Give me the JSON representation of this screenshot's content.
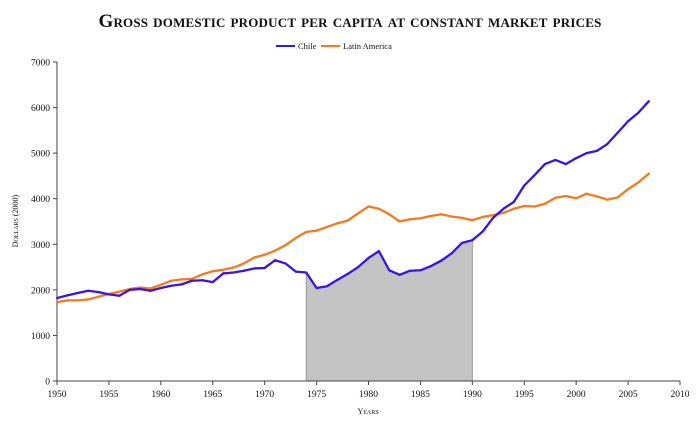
{
  "chart_data": {
    "type": "line",
    "title": "Gross domestic product per capita at constant market prices",
    "xlabel": "Years",
    "ylabel": "Dollars (2000)",
    "xlim": [
      1950,
      2010
    ],
    "ylim": [
      0,
      7000
    ],
    "xticks": [
      1950,
      1955,
      1960,
      1965,
      1970,
      1975,
      1980,
      1985,
      1990,
      1995,
      2000,
      2005,
      2010
    ],
    "yticks": [
      0,
      1000,
      2000,
      3000,
      4000,
      5000,
      6000,
      7000
    ],
    "grid": false,
    "legend": "top-center",
    "x": [
      1950,
      1951,
      1952,
      1953,
      1954,
      1955,
      1956,
      1957,
      1958,
      1959,
      1960,
      1961,
      1962,
      1963,
      1964,
      1965,
      1966,
      1967,
      1968,
      1969,
      1970,
      1971,
      1972,
      1973,
      1974,
      1975,
      1976,
      1977,
      1978,
      1979,
      1980,
      1981,
      1982,
      1983,
      1984,
      1985,
      1986,
      1987,
      1988,
      1989,
      1990,
      1991,
      1992,
      1993,
      1994,
      1995,
      1996,
      1997,
      1998,
      1999,
      2000,
      2001,
      2002,
      2003,
      2004,
      2005,
      2006,
      2007
    ],
    "series": [
      {
        "name": "Chile",
        "color": "#3a13e0",
        "values": [
          1820,
          1880,
          1930,
          1980,
          1950,
          1900,
          1870,
          2000,
          2020,
          1980,
          2040,
          2090,
          2120,
          2200,
          2210,
          2170,
          2360,
          2380,
          2420,
          2470,
          2480,
          2650,
          2580,
          2400,
          2380,
          2040,
          2080,
          2220,
          2350,
          2500,
          2700,
          2850,
          2430,
          2330,
          2420,
          2430,
          2520,
          2640,
          2800,
          3030,
          3090,
          3280,
          3580,
          3780,
          3930,
          4290,
          4520,
          4760,
          4850,
          4760,
          4890,
          5000,
          5050,
          5200,
          5450,
          5700,
          5890,
          6140
        ]
      },
      {
        "name": "Latin America",
        "color": "#f57a1e",
        "values": [
          1730,
          1770,
          1770,
          1790,
          1850,
          1910,
          1960,
          2020,
          2050,
          2030,
          2110,
          2200,
          2230,
          2240,
          2340,
          2410,
          2440,
          2490,
          2580,
          2710,
          2770,
          2860,
          2980,
          3140,
          3270,
          3300,
          3380,
          3460,
          3520,
          3680,
          3830,
          3780,
          3660,
          3500,
          3550,
          3570,
          3620,
          3660,
          3610,
          3580,
          3530,
          3600,
          3640,
          3690,
          3780,
          3840,
          3830,
          3890,
          4020,
          4060,
          4010,
          4110,
          4050,
          3980,
          4030,
          4210,
          4360,
          4550
        ]
      }
    ],
    "shaded_region": {
      "x_start": 1974,
      "x_end": 1990,
      "series": "Chile",
      "color": "#c4c4c4"
    }
  }
}
